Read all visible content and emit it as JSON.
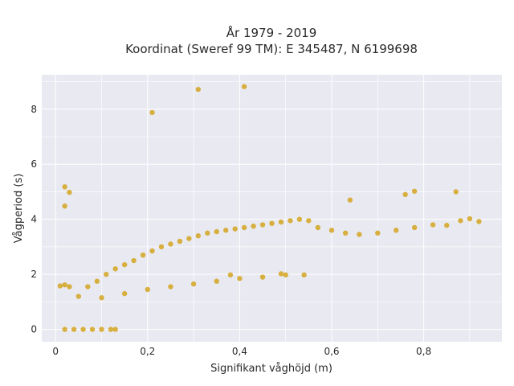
{
  "chart_data": {
    "type": "scatter",
    "title": "År 1979 - 2019",
    "subtitle": "Koordinat (Sweref 99 TM): E 345487, N 6199698",
    "xlabel": "Signifikant våghöjd (m)",
    "ylabel": "Vågperiod (s)",
    "xlim": [
      -0.03,
      0.97
    ],
    "ylim": [
      -0.45,
      9.25
    ],
    "xticks": [
      0,
      0.2,
      0.4,
      0.6,
      0.8
    ],
    "xtick_labels": [
      "0",
      "0,2",
      "0,4",
      "0,6",
      "0,8"
    ],
    "yticks": [
      0,
      2,
      4,
      6,
      8
    ],
    "ytick_labels": [
      "0",
      "2",
      "4",
      "6",
      "8"
    ],
    "grid": true,
    "legend": "none",
    "colors": {
      "background": "#e9e9f1",
      "grid": "#ffffff",
      "marker": "#d4a420"
    },
    "series": [
      {
        "points": [
          [
            0.31,
            8.72
          ],
          [
            0.41,
            8.82
          ],
          [
            0.21,
            7.88
          ],
          [
            0.02,
            5.18
          ],
          [
            0.03,
            4.98
          ],
          [
            0.02,
            4.48
          ],
          [
            0.38,
            1.98
          ],
          [
            0.54,
            1.98
          ],
          [
            0.49,
            2.02
          ],
          [
            0.78,
            5.02
          ],
          [
            0.87,
            5.0
          ],
          [
            0.76,
            4.9
          ],
          [
            0.64,
            4.7
          ],
          [
            0.92,
            3.92
          ],
          [
            0.9,
            4.02
          ],
          [
            0.85,
            3.78
          ],
          [
            0.88,
            3.95
          ],
          [
            0.13,
            0.0
          ],
          [
            0.12,
            0.0
          ],
          [
            0.1,
            0.0
          ],
          [
            0.08,
            0.0
          ],
          [
            0.06,
            0.0
          ],
          [
            0.04,
            0.0
          ],
          [
            0.02,
            0.0
          ],
          [
            0.01,
            1.58
          ],
          [
            0.02,
            1.62
          ],
          [
            0.03,
            1.55
          ],
          [
            0.05,
            1.2
          ],
          [
            0.07,
            1.55
          ],
          [
            0.09,
            1.75
          ],
          [
            0.11,
            2.0
          ],
          [
            0.13,
            2.2
          ],
          [
            0.15,
            2.35
          ],
          [
            0.17,
            2.5
          ],
          [
            0.19,
            2.7
          ],
          [
            0.21,
            2.85
          ],
          [
            0.23,
            3.0
          ],
          [
            0.25,
            3.1
          ],
          [
            0.27,
            3.2
          ],
          [
            0.29,
            3.3
          ],
          [
            0.31,
            3.4
          ],
          [
            0.33,
            3.5
          ],
          [
            0.35,
            3.55
          ],
          [
            0.37,
            3.6
          ],
          [
            0.39,
            3.65
          ],
          [
            0.41,
            3.7
          ],
          [
            0.43,
            3.75
          ],
          [
            0.45,
            3.8
          ],
          [
            0.47,
            3.85
          ],
          [
            0.49,
            3.9
          ],
          [
            0.51,
            3.95
          ],
          [
            0.53,
            4.0
          ],
          [
            0.55,
            3.95
          ],
          [
            0.57,
            3.7
          ],
          [
            0.6,
            3.6
          ],
          [
            0.63,
            3.5
          ],
          [
            0.66,
            3.45
          ],
          [
            0.7,
            3.5
          ],
          [
            0.74,
            3.6
          ],
          [
            0.78,
            3.7
          ],
          [
            0.82,
            3.8
          ],
          [
            0.1,
            1.15
          ],
          [
            0.15,
            1.3
          ],
          [
            0.2,
            1.45
          ],
          [
            0.25,
            1.55
          ],
          [
            0.3,
            1.65
          ],
          [
            0.35,
            1.75
          ],
          [
            0.4,
            1.85
          ],
          [
            0.45,
            1.9
          ],
          [
            0.5,
            1.98
          ]
        ]
      }
    ]
  }
}
